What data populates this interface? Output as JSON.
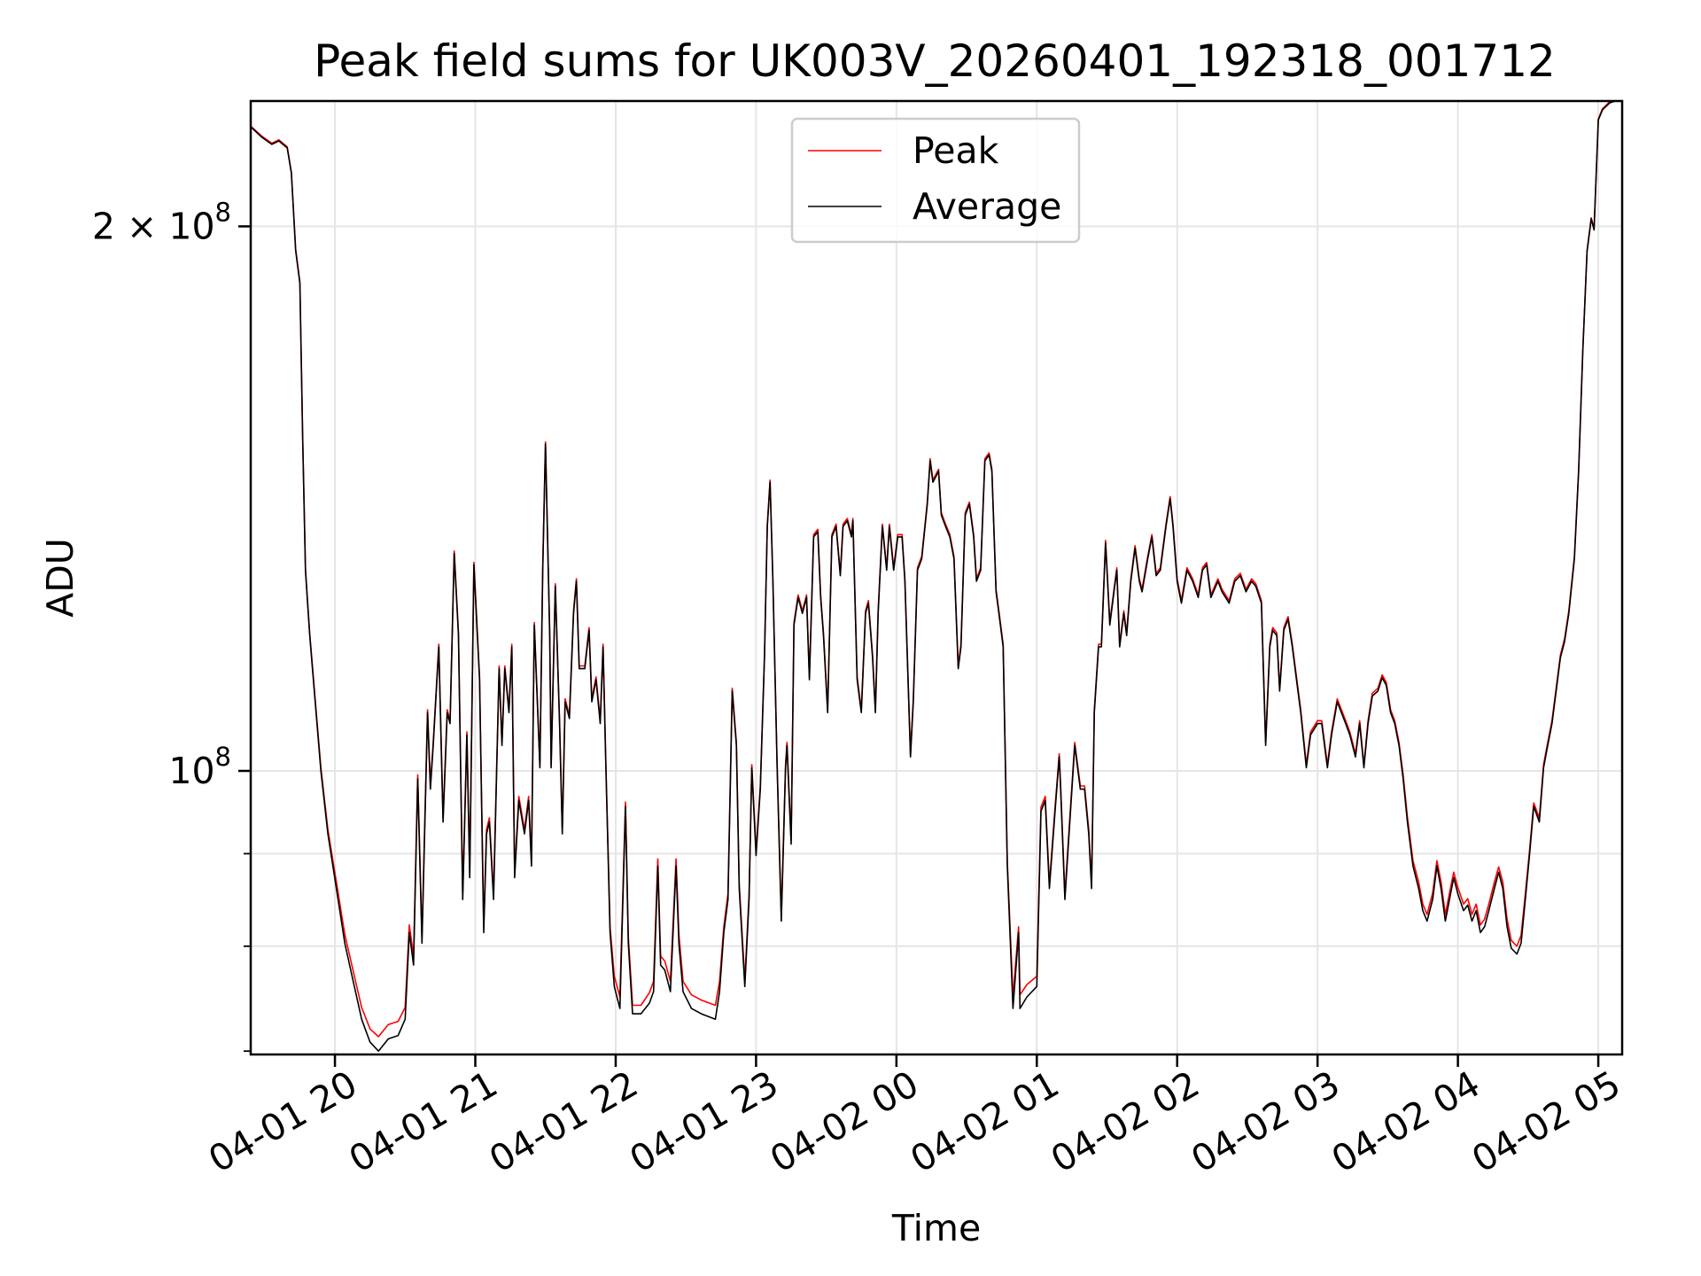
{
  "chart_data": {
    "type": "line",
    "title": "Peak field sums for UK003V_20260401_192318_001712",
    "xlabel": "Time",
    "ylabel": "ADU",
    "x_unit": "hours since 04-01 20:00",
    "y_unit_multiplier": 100000000,
    "yscale": "log",
    "xlim": [
      -0.6,
      9.17
    ],
    "ylim": [
      0.697,
      2.346
    ],
    "grid": true,
    "legend_position": "upper-center",
    "x_ticks": [
      {
        "value": 0,
        "label": "04-01 20"
      },
      {
        "value": 1,
        "label": "04-01 21"
      },
      {
        "value": 2,
        "label": "04-01 22"
      },
      {
        "value": 3,
        "label": "04-01 23"
      },
      {
        "value": 4,
        "label": "04-02 00"
      },
      {
        "value": 5,
        "label": "04-02 01"
      },
      {
        "value": 6,
        "label": "04-02 02"
      },
      {
        "value": 7,
        "label": "04-02 03"
      },
      {
        "value": 8,
        "label": "04-02 04"
      },
      {
        "value": 9,
        "label": "04-02 05"
      }
    ],
    "y_major_ticks": [
      {
        "value": 1,
        "base": "10",
        "exp": "8"
      },
      {
        "value": 2,
        "base": "2 × 10",
        "exp": "8"
      }
    ],
    "y_minor_ticks": [
      0.7,
      0.8,
      0.9
    ],
    "series": [
      {
        "name": "Peak",
        "color": "#ff0000"
      },
      {
        "name": "Average",
        "color": "#000000"
      }
    ],
    "columns": [
      "hours",
      "average",
      "peak"
    ],
    "points": [
      [
        -0.6,
        2.27,
        2.272
      ],
      [
        -0.52,
        2.24,
        2.243
      ],
      [
        -0.45,
        2.22,
        2.223
      ],
      [
        -0.4,
        2.23,
        2.233
      ],
      [
        -0.34,
        2.21,
        2.213
      ],
      [
        -0.31,
        2.14,
        2.143
      ],
      [
        -0.28,
        1.94,
        1.943
      ],
      [
        -0.25,
        1.86,
        1.863
      ],
      [
        -0.23,
        1.53,
        1.533
      ],
      [
        -0.21,
        1.29,
        1.293
      ],
      [
        -0.18,
        1.19,
        1.193
      ],
      [
        -0.14,
        1.09,
        1.093
      ],
      [
        -0.1,
        1.0,
        1.004
      ],
      [
        -0.05,
        0.923,
        0.928
      ],
      [
        0.01,
        0.861,
        0.868
      ],
      [
        0.07,
        0.803,
        0.812
      ],
      [
        0.13,
        0.765,
        0.775
      ],
      [
        0.19,
        0.729,
        0.74
      ],
      [
        0.25,
        0.708,
        0.72
      ],
      [
        0.31,
        0.7,
        0.713
      ],
      [
        0.38,
        0.711,
        0.724
      ],
      [
        0.45,
        0.714,
        0.727
      ],
      [
        0.5,
        0.729,
        0.74
      ],
      [
        0.53,
        0.814,
        0.822
      ],
      [
        0.56,
        0.781,
        0.79
      ],
      [
        0.59,
        0.99,
        0.995
      ],
      [
        0.62,
        0.803,
        0.81
      ],
      [
        0.66,
        1.077,
        1.081
      ],
      [
        0.68,
        0.977,
        0.982
      ],
      [
        0.7,
        1.033,
        1.037
      ],
      [
        0.74,
        1.171,
        1.175
      ],
      [
        0.77,
        0.937,
        0.942
      ],
      [
        0.8,
        1.077,
        1.081
      ],
      [
        0.82,
        1.062,
        1.066
      ],
      [
        0.85,
        1.319,
        1.323
      ],
      [
        0.88,
        1.188,
        1.192
      ],
      [
        0.91,
        0.849,
        0.855
      ],
      [
        0.94,
        1.047,
        1.051
      ],
      [
        0.96,
        0.873,
        0.879
      ],
      [
        0.99,
        1.3,
        1.304
      ],
      [
        1.03,
        1.123,
        1.127
      ],
      [
        1.06,
        0.814,
        0.82
      ],
      [
        1.08,
        0.923,
        0.928
      ],
      [
        1.1,
        0.937,
        0.942
      ],
      [
        1.13,
        0.849,
        0.855
      ],
      [
        1.17,
        1.139,
        1.143
      ],
      [
        1.19,
        1.033,
        1.037
      ],
      [
        1.21,
        1.139,
        1.143
      ],
      [
        1.24,
        1.077,
        1.081
      ],
      [
        1.26,
        1.171,
        1.175
      ],
      [
        1.28,
        0.873,
        0.879
      ],
      [
        1.31,
        0.963,
        0.968
      ],
      [
        1.35,
        0.923,
        0.928
      ],
      [
        1.38,
        0.963,
        0.968
      ],
      [
        1.4,
        0.886,
        0.892
      ],
      [
        1.42,
        1.204,
        1.208
      ],
      [
        1.46,
        1.004,
        1.008
      ],
      [
        1.48,
        1.291,
        1.295
      ],
      [
        1.5,
        1.516,
        1.52
      ],
      [
        1.53,
        1.188,
        1.192
      ],
      [
        1.54,
        1.004,
        1.008
      ],
      [
        1.57,
        1.265,
        1.269
      ],
      [
        1.6,
        1.062,
        1.066
      ],
      [
        1.62,
        0.923,
        0.928
      ],
      [
        1.64,
        1.092,
        1.096
      ],
      [
        1.67,
        1.069,
        1.073
      ],
      [
        1.7,
        1.222,
        1.226
      ],
      [
        1.72,
        1.273,
        1.277
      ],
      [
        1.74,
        1.139,
        1.143
      ],
      [
        1.78,
        1.139,
        1.143
      ],
      [
        1.81,
        1.196,
        1.2
      ],
      [
        1.83,
        1.092,
        1.096
      ],
      [
        1.86,
        1.123,
        1.127
      ],
      [
        1.89,
        1.062,
        1.066
      ],
      [
        1.91,
        1.171,
        1.175
      ],
      [
        1.93,
        1.004,
        1.008
      ],
      [
        1.96,
        0.814,
        0.82
      ],
      [
        1.99,
        0.76,
        0.77
      ],
      [
        2.03,
        0.739,
        0.75
      ],
      [
        2.07,
        0.956,
        0.961
      ],
      [
        2.09,
        0.803,
        0.81
      ],
      [
        2.12,
        0.734,
        0.742
      ],
      [
        2.18,
        0.734,
        0.742
      ],
      [
        2.24,
        0.744,
        0.754
      ],
      [
        2.27,
        0.755,
        0.765
      ],
      [
        2.3,
        0.886,
        0.894
      ],
      [
        2.32,
        0.781,
        0.79
      ],
      [
        2.35,
        0.776,
        0.785
      ],
      [
        2.39,
        0.755,
        0.765
      ],
      [
        2.43,
        0.886,
        0.894
      ],
      [
        2.45,
        0.803,
        0.812
      ],
      [
        2.48,
        0.755,
        0.765
      ],
      [
        2.54,
        0.739,
        0.752
      ],
      [
        2.61,
        0.734,
        0.747
      ],
      [
        2.71,
        0.729,
        0.742
      ],
      [
        2.74,
        0.755,
        0.765
      ],
      [
        2.77,
        0.814,
        0.82
      ],
      [
        2.8,
        0.849,
        0.855
      ],
      [
        2.83,
        1.107,
        1.111
      ],
      [
        2.86,
        1.033,
        1.037
      ],
      [
        2.88,
        0.861,
        0.866
      ],
      [
        2.92,
        0.76,
        0.766
      ],
      [
        2.95,
        0.849,
        0.854
      ],
      [
        2.97,
        1.004,
        1.008
      ],
      [
        3.0,
        0.898,
        0.903
      ],
      [
        3.03,
        0.977,
        0.981
      ],
      [
        3.06,
        1.155,
        1.159
      ],
      [
        3.08,
        1.365,
        1.369
      ],
      [
        3.1,
        1.444,
        1.448
      ],
      [
        3.12,
        1.273,
        1.277
      ],
      [
        3.15,
        1.004,
        1.008
      ],
      [
        3.18,
        0.826,
        0.831
      ],
      [
        3.21,
        1.004,
        1.008
      ],
      [
        3.22,
        1.033,
        1.037
      ],
      [
        3.25,
        0.911,
        0.916
      ],
      [
        3.27,
        1.204,
        1.208
      ],
      [
        3.3,
        1.247,
        1.251
      ],
      [
        3.33,
        1.222,
        1.226
      ],
      [
        3.36,
        1.247,
        1.251
      ],
      [
        3.38,
        1.123,
        1.127
      ],
      [
        3.41,
        1.347,
        1.351
      ],
      [
        3.44,
        1.356,
        1.36
      ],
      [
        3.46,
        1.247,
        1.251
      ],
      [
        3.48,
        1.188,
        1.192
      ],
      [
        3.51,
        1.077,
        1.081
      ],
      [
        3.54,
        1.347,
        1.351
      ],
      [
        3.57,
        1.365,
        1.369
      ],
      [
        3.6,
        1.282,
        1.286
      ],
      [
        3.62,
        1.365,
        1.369
      ],
      [
        3.65,
        1.375,
        1.379
      ],
      [
        3.68,
        1.347,
        1.351
      ],
      [
        3.69,
        1.375,
        1.379
      ],
      [
        3.72,
        1.123,
        1.127
      ],
      [
        3.75,
        1.077,
        1.081
      ],
      [
        3.78,
        1.222,
        1.226
      ],
      [
        3.8,
        1.238,
        1.242
      ],
      [
        3.83,
        1.155,
        1.159
      ],
      [
        3.85,
        1.077,
        1.081
      ],
      [
        3.87,
        1.222,
        1.226
      ],
      [
        3.9,
        1.365,
        1.369
      ],
      [
        3.93,
        1.291,
        1.295
      ],
      [
        3.95,
        1.365,
        1.369
      ],
      [
        3.98,
        1.291,
        1.295
      ],
      [
        4.01,
        1.347,
        1.351
      ],
      [
        4.04,
        1.347,
        1.351
      ],
      [
        4.06,
        1.273,
        1.277
      ],
      [
        4.1,
        1.018,
        1.022
      ],
      [
        4.12,
        1.092,
        1.096
      ],
      [
        4.15,
        1.291,
        1.295
      ],
      [
        4.18,
        1.31,
        1.314
      ],
      [
        4.22,
        1.404,
        1.408
      ],
      [
        4.24,
        1.484,
        1.488
      ],
      [
        4.26,
        1.444,
        1.448
      ],
      [
        4.3,
        1.464,
        1.468
      ],
      [
        4.32,
        1.385,
        1.389
      ],
      [
        4.35,
        1.365,
        1.369
      ],
      [
        4.38,
        1.347,
        1.351
      ],
      [
        4.41,
        1.31,
        1.314
      ],
      [
        4.44,
        1.139,
        1.143
      ],
      [
        4.46,
        1.171,
        1.175
      ],
      [
        4.49,
        1.385,
        1.389
      ],
      [
        4.52,
        1.404,
        1.408
      ],
      [
        4.55,
        1.347,
        1.351
      ],
      [
        4.57,
        1.273,
        1.277
      ],
      [
        4.6,
        1.291,
        1.295
      ],
      [
        4.63,
        1.484,
        1.488
      ],
      [
        4.66,
        1.495,
        1.499
      ],
      [
        4.68,
        1.464,
        1.468
      ],
      [
        4.71,
        1.256,
        1.26
      ],
      [
        4.73,
        1.222,
        1.226
      ],
      [
        4.76,
        1.171,
        1.175
      ],
      [
        4.79,
        0.886,
        0.891
      ],
      [
        4.83,
        0.739,
        0.75
      ],
      [
        4.87,
        0.814,
        0.82
      ],
      [
        4.88,
        0.739,
        0.752
      ],
      [
        4.93,
        0.75,
        0.762
      ],
      [
        5.0,
        0.76,
        0.77
      ],
      [
        5.03,
        0.95,
        0.955
      ],
      [
        5.06,
        0.963,
        0.968
      ],
      [
        5.09,
        0.861,
        0.866
      ],
      [
        5.13,
        0.95,
        0.955
      ],
      [
        5.16,
        1.018,
        1.022
      ],
      [
        5.17,
        0.977,
        0.981
      ],
      [
        5.2,
        0.849,
        0.854
      ],
      [
        5.23,
        0.923,
        0.928
      ],
      [
        5.27,
        1.033,
        1.037
      ],
      [
        5.31,
        0.977,
        0.981
      ],
      [
        5.34,
        0.977,
        0.981
      ],
      [
        5.37,
        0.923,
        0.928
      ],
      [
        5.39,
        0.861,
        0.866
      ],
      [
        5.41,
        1.077,
        1.081
      ],
      [
        5.44,
        1.171,
        1.175
      ],
      [
        5.46,
        1.171,
        1.175
      ],
      [
        5.49,
        1.337,
        1.341
      ],
      [
        5.52,
        1.204,
        1.208
      ],
      [
        5.55,
        1.256,
        1.26
      ],
      [
        5.57,
        1.291,
        1.295
      ],
      [
        5.59,
        1.171,
        1.175
      ],
      [
        5.62,
        1.222,
        1.226
      ],
      [
        5.64,
        1.188,
        1.192
      ],
      [
        5.67,
        1.273,
        1.277
      ],
      [
        5.7,
        1.328,
        1.332
      ],
      [
        5.73,
        1.273,
        1.277
      ],
      [
        5.75,
        1.256,
        1.26
      ],
      [
        5.79,
        1.31,
        1.314
      ],
      [
        5.82,
        1.347,
        1.351
      ],
      [
        5.85,
        1.282,
        1.286
      ],
      [
        5.88,
        1.291,
        1.295
      ],
      [
        5.92,
        1.365,
        1.369
      ],
      [
        5.95,
        1.414,
        1.418
      ],
      [
        5.97,
        1.365,
        1.369
      ],
      [
        6.0,
        1.273,
        1.277
      ],
      [
        6.03,
        1.238,
        1.242
      ],
      [
        6.07,
        1.291,
        1.295
      ],
      [
        6.11,
        1.273,
        1.277
      ],
      [
        6.15,
        1.247,
        1.251
      ],
      [
        6.18,
        1.291,
        1.295
      ],
      [
        6.21,
        1.3,
        1.304
      ],
      [
        6.24,
        1.247,
        1.251
      ],
      [
        6.29,
        1.273,
        1.277
      ],
      [
        6.32,
        1.256,
        1.26
      ],
      [
        6.37,
        1.238,
        1.242
      ],
      [
        6.41,
        1.273,
        1.277
      ],
      [
        6.45,
        1.282,
        1.286
      ],
      [
        6.49,
        1.256,
        1.26
      ],
      [
        6.53,
        1.273,
        1.277
      ],
      [
        6.56,
        1.265,
        1.269
      ],
      [
        6.6,
        1.238,
        1.242
      ],
      [
        6.63,
        1.033,
        1.037
      ],
      [
        6.66,
        1.171,
        1.175
      ],
      [
        6.68,
        1.196,
        1.2
      ],
      [
        6.71,
        1.188,
        1.192
      ],
      [
        6.73,
        1.107,
        1.111
      ],
      [
        6.76,
        1.196,
        1.2
      ],
      [
        6.79,
        1.213,
        1.217
      ],
      [
        6.82,
        1.171,
        1.175
      ],
      [
        6.85,
        1.123,
        1.127
      ],
      [
        6.88,
        1.077,
        1.081
      ],
      [
        6.92,
        1.004,
        1.008
      ],
      [
        6.95,
        1.047,
        1.051
      ],
      [
        7.0,
        1.062,
        1.066
      ],
      [
        7.03,
        1.062,
        1.066
      ],
      [
        7.07,
        1.004,
        1.008
      ],
      [
        7.1,
        1.047,
        1.051
      ],
      [
        7.14,
        1.092,
        1.096
      ],
      [
        7.17,
        1.077,
        1.081
      ],
      [
        7.2,
        1.062,
        1.066
      ],
      [
        7.23,
        1.047,
        1.051
      ],
      [
        7.27,
        1.018,
        1.022
      ],
      [
        7.3,
        1.062,
        1.066
      ],
      [
        7.33,
        1.004,
        1.008
      ],
      [
        7.36,
        1.062,
        1.066
      ],
      [
        7.39,
        1.1,
        1.104
      ],
      [
        7.43,
        1.107,
        1.111
      ],
      [
        7.46,
        1.126,
        1.13
      ],
      [
        7.49,
        1.115,
        1.119
      ],
      [
        7.52,
        1.077,
        1.081
      ],
      [
        7.55,
        1.062,
        1.066
      ],
      [
        7.58,
        1.033,
        1.037
      ],
      [
        7.61,
        0.99,
        0.995
      ],
      [
        7.64,
        0.937,
        0.943
      ],
      [
        7.68,
        0.886,
        0.892
      ],
      [
        7.72,
        0.861,
        0.868
      ],
      [
        7.75,
        0.837,
        0.844
      ],
      [
        7.78,
        0.826,
        0.833
      ],
      [
        7.82,
        0.849,
        0.856
      ],
      [
        7.85,
        0.886,
        0.892
      ],
      [
        7.88,
        0.861,
        0.868
      ],
      [
        7.91,
        0.826,
        0.833
      ],
      [
        7.94,
        0.849,
        0.856
      ],
      [
        7.97,
        0.873,
        0.879
      ],
      [
        8.0,
        0.855,
        0.862
      ],
      [
        8.04,
        0.837,
        0.844
      ],
      [
        8.07,
        0.843,
        0.85
      ],
      [
        8.1,
        0.826,
        0.833
      ],
      [
        8.13,
        0.837,
        0.844
      ],
      [
        8.16,
        0.814,
        0.822
      ],
      [
        8.19,
        0.82,
        0.828
      ],
      [
        8.22,
        0.837,
        0.844
      ],
      [
        8.26,
        0.861,
        0.868
      ],
      [
        8.29,
        0.879,
        0.885
      ],
      [
        8.32,
        0.861,
        0.868
      ],
      [
        8.35,
        0.82,
        0.828
      ],
      [
        8.38,
        0.798,
        0.806
      ],
      [
        8.42,
        0.792,
        0.8
      ],
      [
        8.45,
        0.803,
        0.811
      ],
      [
        8.48,
        0.849,
        0.855
      ],
      [
        8.51,
        0.898,
        0.903
      ],
      [
        8.54,
        0.956,
        0.96
      ],
      [
        8.58,
        0.937,
        0.942
      ],
      [
        8.61,
        1.004,
        1.008
      ],
      [
        8.64,
        1.033,
        1.037
      ],
      [
        8.67,
        1.062,
        1.066
      ],
      [
        8.7,
        1.107,
        1.111
      ],
      [
        8.73,
        1.155,
        1.159
      ],
      [
        8.76,
        1.179,
        1.183
      ],
      [
        8.79,
        1.222,
        1.226
      ],
      [
        8.83,
        1.31,
        1.314
      ],
      [
        8.86,
        1.464,
        1.468
      ],
      [
        8.89,
        1.707,
        1.71
      ],
      [
        8.92,
        1.937,
        1.94
      ],
      [
        8.95,
        2.019,
        2.022
      ],
      [
        8.97,
        1.991,
        1.994
      ],
      [
        9.0,
        2.29,
        2.293
      ],
      [
        9.03,
        2.32,
        2.323
      ],
      [
        9.08,
        2.34,
        2.343
      ],
      [
        9.12,
        2.346,
        2.349
      ]
    ]
  }
}
